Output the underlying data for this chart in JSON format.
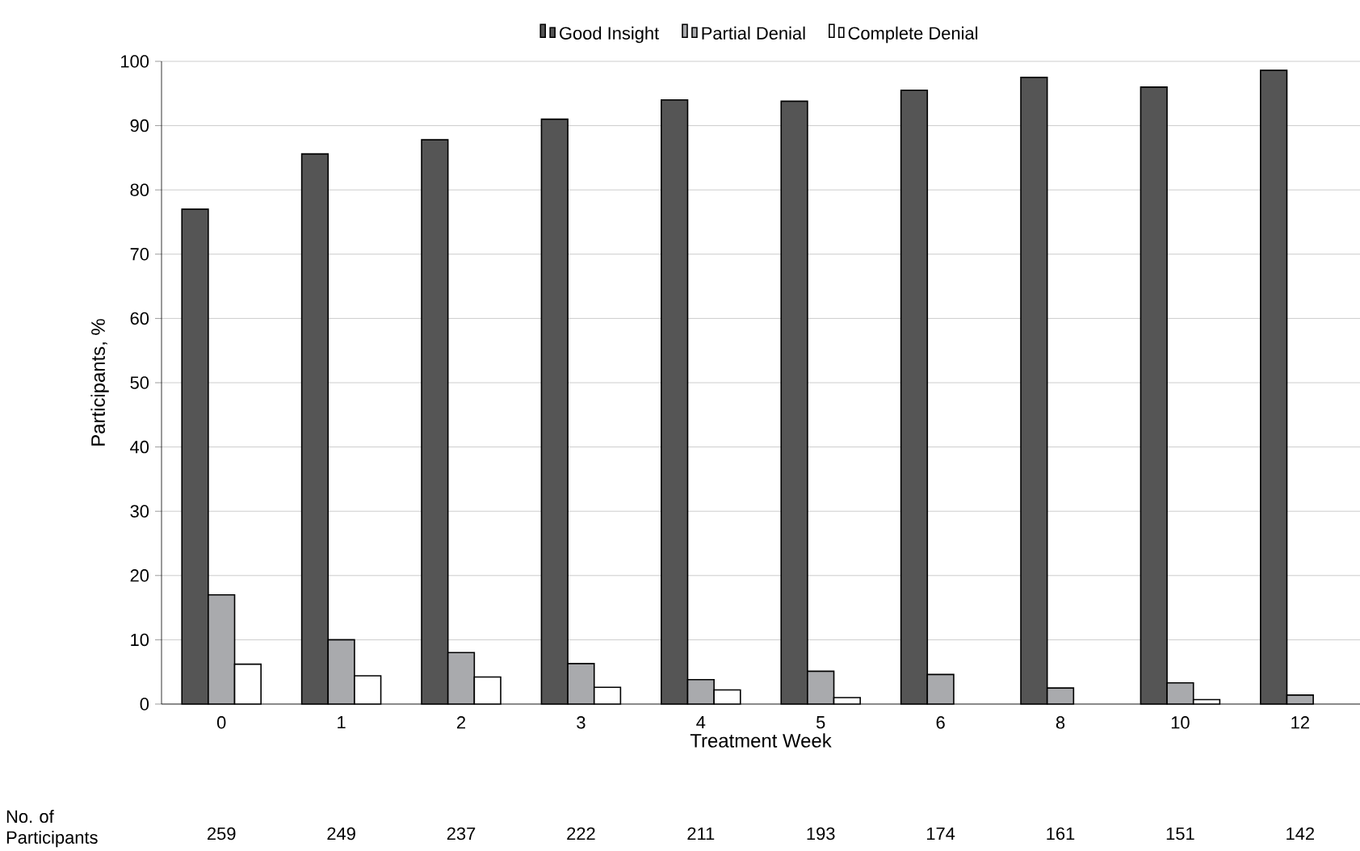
{
  "chart_data": {
    "type": "bar",
    "xlabel": "Treatment Week",
    "ylabel": "Participants, %",
    "categories": [
      "0",
      "1",
      "2",
      "3",
      "4",
      "5",
      "6",
      "8",
      "10",
      "12"
    ],
    "series": [
      {
        "name": "Good Insight",
        "color": "#555555",
        "values": [
          77,
          85.6,
          87.8,
          91,
          94,
          93.8,
          95.5,
          97.5,
          96,
          98.6
        ]
      },
      {
        "name": "Partial Denial",
        "color": "#a9aaad",
        "values": [
          17,
          10,
          8,
          6.3,
          3.8,
          5.1,
          4.6,
          2.5,
          3.3,
          1.4
        ]
      },
      {
        "name": "Complete Denial",
        "color": "#ffffff",
        "values": [
          6.2,
          4.4,
          4.2,
          2.6,
          2.2,
          1.0,
          null,
          null,
          0.7,
          null
        ]
      }
    ],
    "ylim": [
      0,
      100
    ],
    "yticks": [
      0,
      10,
      20,
      30,
      40,
      50,
      60,
      70,
      80,
      90,
      100
    ],
    "grid": "y",
    "legend": "top",
    "annotations": [
      "No. of Participants",
      "259",
      "249",
      "237",
      "222",
      "211",
      "193",
      "174",
      "161",
      "151",
      "142"
    ]
  }
}
